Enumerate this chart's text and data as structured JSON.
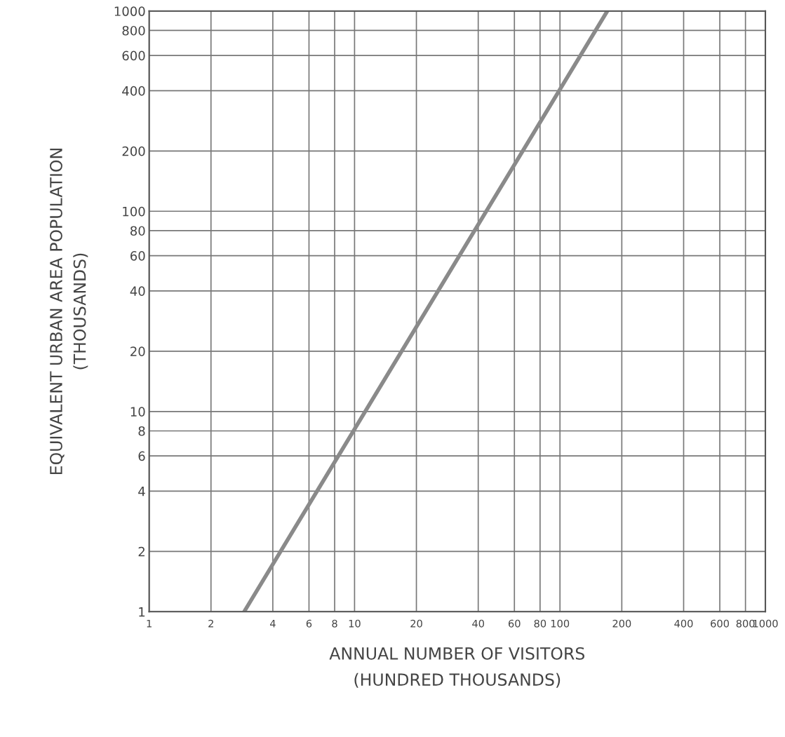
{
  "chart_data": {
    "type": "line",
    "xlabel": "ANNUAL NUMBER OF VISITORS\n(HUNDRED THOUSANDS)",
    "ylabel": "EQUIVALENT URBAN AREA POPULATION\n(THOUSANDS)",
    "log": "xy",
    "x": [
      2.9,
      170
    ],
    "series": [
      {
        "color": "#8a8a8a",
        "values": [
          1,
          1000
        ]
      }
    ],
    "xlim": [
      1,
      1000
    ],
    "ylim": [
      1,
      1000
    ],
    "xticks": [
      1,
      2,
      4,
      6,
      8,
      10,
      20,
      40,
      60,
      80,
      100,
      200,
      400,
      600,
      800,
      1000
    ],
    "yticks": [
      1,
      2,
      4,
      6,
      8,
      10,
      20,
      40,
      60,
      80,
      100,
      200,
      400,
      600,
      800,
      1000
    ],
    "grid": true,
    "marker": "none",
    "line_style": "solid"
  }
}
